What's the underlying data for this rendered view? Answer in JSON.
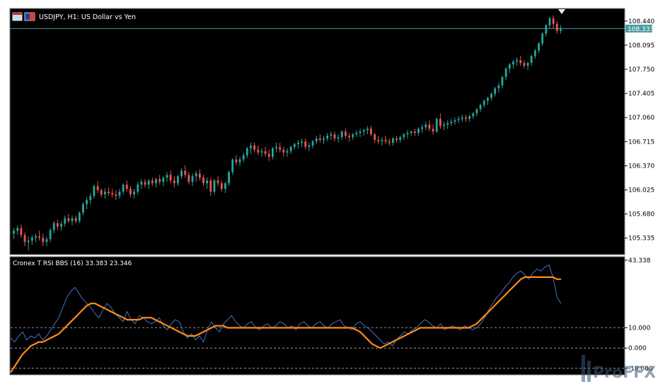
{
  "chart_data": [
    {
      "type": "candlestick",
      "title": "USDJPY, H1:  US Dollar vs Yen",
      "current_price": "108.333",
      "yticks": [
        "108.440",
        "108.095",
        "107.750",
        "107.405",
        "107.060",
        "106.715",
        "106.370",
        "106.025",
        "105.680",
        "105.335"
      ],
      "ylim": [
        105.12,
        108.6
      ],
      "colors": {
        "up": "#26a69a",
        "down": "#ef5350",
        "background": "#000000",
        "price_line": "#4a9aa0"
      },
      "ohlc": [
        [
          105.4,
          105.48,
          105.32,
          105.44
        ],
        [
          105.44,
          105.52,
          105.38,
          105.48
        ],
        [
          105.48,
          105.53,
          105.34,
          105.38
        ],
        [
          105.38,
          105.42,
          105.22,
          105.28
        ],
        [
          105.28,
          105.36,
          105.16,
          105.3
        ],
        [
          105.3,
          105.38,
          105.24,
          105.34
        ],
        [
          105.34,
          105.4,
          105.28,
          105.36
        ],
        [
          105.36,
          105.44,
          105.3,
          105.34
        ],
        [
          105.34,
          105.4,
          105.22,
          105.28
        ],
        [
          105.28,
          105.36,
          105.22,
          105.32
        ],
        [
          105.32,
          105.48,
          105.28,
          105.45
        ],
        [
          105.45,
          105.58,
          105.4,
          105.55
        ],
        [
          105.55,
          105.6,
          105.45,
          105.5
        ],
        [
          105.5,
          105.58,
          105.44,
          105.54
        ],
        [
          105.54,
          105.66,
          105.5,
          105.62
        ],
        [
          105.62,
          105.68,
          105.55,
          105.58
        ],
        [
          105.58,
          105.66,
          105.52,
          105.62
        ],
        [
          105.62,
          105.66,
          105.55,
          105.58
        ],
        [
          105.58,
          105.72,
          105.55,
          105.7
        ],
        [
          105.7,
          105.85,
          105.66,
          105.82
        ],
        [
          105.82,
          105.92,
          105.75,
          105.88
        ],
        [
          105.88,
          105.98,
          105.82,
          105.94
        ],
        [
          105.94,
          106.1,
          105.9,
          106.08
        ],
        [
          106.08,
          106.15,
          105.98,
          106.02
        ],
        [
          106.02,
          106.05,
          105.92,
          105.96
        ],
        [
          105.96,
          106.05,
          105.9,
          106.0
        ],
        [
          106.0,
          106.06,
          105.94,
          105.98
        ],
        [
          105.98,
          106.04,
          105.92,
          105.96
        ],
        [
          105.96,
          106.02,
          105.88,
          105.94
        ],
        [
          105.94,
          106.04,
          105.9,
          106.0
        ],
        [
          106.0,
          106.12,
          105.96,
          106.1
        ],
        [
          106.1,
          106.16,
          106.0,
          106.04
        ],
        [
          106.04,
          106.08,
          105.92,
          105.96
        ],
        [
          105.96,
          106.04,
          105.9,
          106.0
        ],
        [
          106.0,
          106.14,
          105.96,
          106.1
        ],
        [
          106.1,
          106.18,
          106.04,
          106.14
        ],
        [
          106.14,
          106.18,
          106.06,
          106.1
        ],
        [
          106.1,
          106.18,
          106.04,
          106.16
        ],
        [
          106.16,
          106.2,
          106.08,
          106.12
        ],
        [
          106.12,
          106.2,
          106.06,
          106.18
        ],
        [
          106.18,
          106.24,
          106.1,
          106.14
        ],
        [
          106.14,
          106.22,
          106.08,
          106.2
        ],
        [
          106.2,
          106.28,
          106.14,
          106.24
        ],
        [
          106.24,
          106.3,
          106.12,
          106.16
        ],
        [
          106.16,
          106.22,
          106.06,
          106.12
        ],
        [
          106.12,
          106.24,
          106.08,
          106.22
        ],
        [
          106.22,
          106.34,
          106.18,
          106.3
        ],
        [
          106.3,
          106.38,
          106.2,
          106.24
        ],
        [
          106.24,
          106.28,
          106.1,
          106.14
        ],
        [
          106.14,
          106.26,
          106.08,
          106.22
        ],
        [
          106.22,
          106.3,
          106.14,
          106.26
        ],
        [
          106.26,
          106.32,
          106.16,
          106.2
        ],
        [
          106.2,
          106.24,
          106.08,
          106.12
        ],
        [
          106.12,
          106.2,
          106.04,
          106.16
        ],
        [
          106.16,
          106.2,
          105.94,
          106.0
        ],
        [
          106.0,
          106.18,
          105.96,
          106.16
        ],
        [
          106.16,
          106.22,
          106.08,
          106.12
        ],
        [
          106.12,
          106.16,
          106.0,
          106.04
        ],
        [
          106.04,
          106.14,
          105.98,
          106.12
        ],
        [
          106.12,
          106.3,
          106.08,
          106.28
        ],
        [
          106.28,
          106.48,
          106.24,
          106.46
        ],
        [
          106.46,
          106.52,
          106.38,
          106.42
        ],
        [
          106.42,
          106.5,
          106.36,
          106.46
        ],
        [
          106.46,
          106.56,
          106.42,
          106.52
        ],
        [
          106.52,
          106.64,
          106.48,
          106.62
        ],
        [
          106.62,
          106.7,
          106.54,
          106.66
        ],
        [
          106.66,
          106.7,
          106.56,
          106.6
        ],
        [
          106.6,
          106.66,
          106.52,
          106.56
        ],
        [
          106.56,
          106.62,
          106.5,
          106.58
        ],
        [
          106.58,
          106.64,
          106.5,
          106.54
        ],
        [
          106.54,
          106.6,
          106.44,
          106.5
        ],
        [
          106.5,
          106.64,
          106.46,
          106.62
        ],
        [
          106.62,
          106.7,
          106.56,
          106.64
        ],
        [
          106.64,
          106.7,
          106.56,
          106.6
        ],
        [
          106.6,
          106.64,
          106.5,
          106.56
        ],
        [
          106.56,
          106.62,
          106.5,
          106.58
        ],
        [
          106.58,
          106.66,
          106.54,
          106.64
        ],
        [
          106.64,
          106.7,
          106.6,
          106.68
        ],
        [
          106.68,
          106.74,
          106.62,
          106.7
        ],
        [
          106.7,
          106.76,
          106.64,
          106.72
        ],
        [
          106.72,
          106.76,
          106.6,
          106.64
        ],
        [
          106.64,
          106.7,
          106.58,
          106.66
        ],
        [
          106.66,
          106.74,
          106.62,
          106.72
        ],
        [
          106.72,
          106.8,
          106.68,
          106.76
        ],
        [
          106.76,
          106.82,
          106.7,
          106.74
        ],
        [
          106.74,
          106.8,
          106.68,
          106.76
        ],
        [
          106.76,
          106.84,
          106.72,
          106.8
        ],
        [
          106.8,
          106.86,
          106.74,
          106.82
        ],
        [
          106.82,
          106.86,
          106.72,
          106.76
        ],
        [
          106.76,
          106.82,
          106.7,
          106.78
        ],
        [
          106.78,
          106.88,
          106.74,
          106.86
        ],
        [
          106.86,
          106.9,
          106.76,
          106.8
        ],
        [
          106.8,
          106.84,
          106.72,
          106.78
        ],
        [
          106.78,
          106.84,
          106.74,
          106.82
        ],
        [
          106.82,
          106.88,
          106.78,
          106.84
        ],
        [
          106.84,
          106.9,
          106.78,
          106.86
        ],
        [
          106.86,
          106.9,
          106.8,
          106.88
        ],
        [
          106.88,
          106.94,
          106.82,
          106.9
        ],
        [
          106.9,
          106.94,
          106.8,
          106.82
        ],
        [
          106.82,
          106.84,
          106.7,
          106.74
        ],
        [
          106.74,
          106.8,
          106.68,
          106.72
        ],
        [
          106.72,
          106.78,
          106.66,
          106.74
        ],
        [
          106.74,
          106.8,
          106.68,
          106.72
        ],
        [
          106.72,
          106.76,
          106.66,
          106.7
        ],
        [
          106.7,
          106.78,
          106.66,
          106.76
        ],
        [
          106.76,
          106.8,
          106.7,
          106.74
        ],
        [
          106.74,
          106.8,
          106.7,
          106.78
        ],
        [
          106.78,
          106.84,
          106.74,
          106.82
        ],
        [
          106.82,
          106.88,
          106.76,
          106.84
        ],
        [
          106.84,
          106.88,
          106.8,
          106.86
        ],
        [
          106.86,
          106.9,
          106.8,
          106.84
        ],
        [
          106.84,
          106.92,
          106.8,
          106.9
        ],
        [
          106.9,
          106.96,
          106.84,
          106.92
        ],
        [
          106.92,
          107.0,
          106.88,
          106.96
        ],
        [
          106.96,
          107.02,
          106.86,
          106.9
        ],
        [
          106.9,
          106.96,
          106.82,
          106.86
        ],
        [
          106.86,
          107.06,
          106.84,
          107.04
        ],
        [
          107.04,
          107.12,
          106.9,
          106.94
        ],
        [
          106.94,
          107.0,
          106.88,
          106.96
        ],
        [
          106.96,
          107.02,
          106.9,
          106.98
        ],
        [
          106.98,
          107.04,
          106.94,
          107.0
        ],
        [
          107.0,
          107.06,
          106.96,
          107.02
        ],
        [
          107.02,
          107.08,
          106.98,
          107.04
        ],
        [
          107.04,
          107.1,
          107.0,
          107.06
        ],
        [
          107.06,
          107.1,
          107.0,
          107.04
        ],
        [
          107.04,
          107.1,
          107.0,
          107.08
        ],
        [
          107.08,
          107.14,
          107.04,
          107.12
        ],
        [
          107.12,
          107.2,
          107.08,
          107.18
        ],
        [
          107.18,
          107.26,
          107.14,
          107.24
        ],
        [
          107.24,
          107.32,
          107.2,
          107.3
        ],
        [
          107.3,
          107.36,
          107.24,
          107.34
        ],
        [
          107.34,
          107.42,
          107.3,
          107.4
        ],
        [
          107.4,
          107.5,
          107.36,
          107.48
        ],
        [
          107.48,
          107.56,
          107.42,
          107.52
        ],
        [
          107.52,
          107.66,
          107.48,
          107.64
        ],
        [
          107.64,
          107.78,
          107.6,
          107.76
        ],
        [
          107.76,
          107.84,
          107.7,
          107.82
        ],
        [
          107.82,
          107.88,
          107.76,
          107.86
        ],
        [
          107.86,
          107.92,
          107.8,
          107.88
        ],
        [
          107.88,
          107.94,
          107.8,
          107.84
        ],
        [
          107.84,
          107.88,
          107.76,
          107.8
        ],
        [
          107.8,
          107.86,
          107.74,
          107.84
        ],
        [
          107.84,
          107.96,
          107.8,
          107.94
        ],
        [
          107.94,
          108.04,
          107.9,
          108.02
        ],
        [
          108.02,
          108.14,
          107.98,
          108.12
        ],
        [
          108.12,
          108.28,
          108.08,
          108.26
        ],
        [
          108.26,
          108.4,
          108.22,
          108.38
        ],
        [
          108.38,
          108.5,
          108.34,
          108.48
        ],
        [
          108.48,
          108.52,
          108.34,
          108.4
        ],
        [
          108.4,
          108.44,
          108.26,
          108.3
        ],
        [
          108.3,
          108.38,
          108.26,
          108.33
        ]
      ]
    },
    {
      "type": "line",
      "title": "Cronex T RSI BBS (16) 33.383 23.346",
      "yticks": [
        "43.338",
        "10.000",
        "0.000",
        "-10.000"
      ],
      "levels": [
        10,
        0,
        -10
      ],
      "ylim": [
        -12.5,
        43.338
      ],
      "series": [
        {
          "color": "#4a7fd4",
          "values": [
            5,
            3,
            6,
            8,
            4,
            6,
            5,
            7,
            4,
            6,
            9,
            12,
            15,
            20,
            25,
            28,
            30,
            27,
            24,
            22,
            20,
            17,
            15,
            19,
            22,
            20,
            17,
            15,
            13,
            18,
            14,
            12,
            16,
            15,
            13,
            12,
            13,
            15,
            11,
            9,
            12,
            14,
            13,
            8,
            5,
            7,
            4,
            6,
            3,
            9,
            13,
            10,
            8,
            12,
            14,
            16,
            13,
            11,
            10,
            12,
            13,
            10,
            9,
            11,
            12,
            10,
            11,
            13,
            12,
            10,
            11,
            9,
            12,
            13,
            11,
            10,
            12,
            13,
            11,
            10,
            12,
            13,
            14,
            11,
            10,
            9,
            12,
            13,
            11,
            10,
            8,
            6,
            4,
            2,
            3,
            1,
            4,
            6,
            8,
            7,
            9,
            10,
            12,
            14,
            13,
            11,
            10,
            12,
            9,
            10,
            11,
            10,
            9,
            11,
            10,
            9,
            10,
            12,
            15,
            19,
            22,
            25,
            27,
            30,
            32,
            35,
            37,
            38,
            36,
            34,
            37,
            39,
            38,
            40,
            41,
            35,
            25,
            22
          ]
        },
        {
          "color": "#ff8c1a",
          "values": [
            -12,
            -9,
            -6,
            -3,
            -1,
            1,
            2,
            3,
            3,
            4,
            5,
            6,
            7,
            9,
            11,
            13,
            15,
            17,
            19,
            21,
            22,
            22,
            21,
            20,
            19,
            18,
            17,
            16,
            15,
            14,
            14,
            14,
            14,
            15,
            15,
            15,
            14,
            13,
            12,
            11,
            10,
            9,
            8,
            7,
            6,
            6,
            6,
            7,
            8,
            9,
            10,
            11,
            11,
            11,
            10,
            10,
            10,
            10,
            10,
            10,
            10,
            10,
            10,
            10,
            10,
            10,
            10,
            10,
            10,
            10,
            10,
            10,
            10,
            10,
            10,
            10,
            10,
            10,
            10,
            10,
            10,
            10,
            10,
            10,
            10,
            10,
            9,
            8,
            6,
            4,
            2,
            1,
            0,
            1,
            2,
            3,
            4,
            5,
            6,
            7,
            8,
            9,
            10,
            10,
            10,
            10,
            10,
            10,
            10,
            10,
            10,
            10,
            10,
            10,
            10,
            11,
            12,
            14,
            16,
            18,
            20,
            22,
            24,
            26,
            28,
            30,
            32,
            34,
            35,
            35,
            35,
            35,
            35,
            35,
            35,
            35,
            34,
            34
          ]
        }
      ]
    }
  ],
  "watermark": "ProFFX"
}
